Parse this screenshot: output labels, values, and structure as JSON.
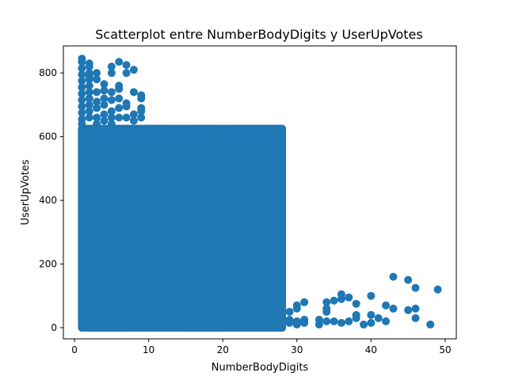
{
  "chart_data": {
    "type": "scatter",
    "title": "Scatterplot entre NumberBodyDigits y UserUpVotes",
    "xlabel": "NumberBodyDigits",
    "ylabel": "UserUpVotes",
    "xlim": [
      -1.5,
      51.5
    ],
    "ylim": [
      -35,
      885
    ],
    "x_ticks": [
      0,
      10,
      20,
      30,
      40,
      50
    ],
    "y_ticks": [
      0,
      200,
      400,
      600,
      800
    ],
    "grid": false,
    "legend": "none",
    "marker_color": "#1f77b4",
    "dense_region": {
      "x_range": [
        1,
        28
      ],
      "y_range": [
        0,
        625
      ]
    },
    "points": [
      [
        1,
        845
      ],
      [
        1,
        835
      ],
      [
        1,
        815
      ],
      [
        1,
        795
      ],
      [
        1,
        775
      ],
      [
        1,
        755
      ],
      [
        1,
        735
      ],
      [
        1,
        715
      ],
      [
        1,
        695
      ],
      [
        1,
        675
      ],
      [
        1,
        655
      ],
      [
        1,
        640
      ],
      [
        2,
        830
      ],
      [
        2,
        820
      ],
      [
        2,
        800
      ],
      [
        2,
        790
      ],
      [
        2,
        780
      ],
      [
        2,
        760
      ],
      [
        2,
        740
      ],
      [
        2,
        720
      ],
      [
        2,
        700
      ],
      [
        2,
        680
      ],
      [
        2,
        660
      ],
      [
        3,
        800
      ],
      [
        3,
        780
      ],
      [
        3,
        740
      ],
      [
        3,
        710
      ],
      [
        3,
        690
      ],
      [
        3,
        660
      ],
      [
        3,
        640
      ],
      [
        4,
        765
      ],
      [
        4,
        745
      ],
      [
        4,
        720
      ],
      [
        4,
        700
      ],
      [
        4,
        670
      ],
      [
        4,
        650
      ],
      [
        5,
        820
      ],
      [
        5,
        800
      ],
      [
        5,
        740
      ],
      [
        5,
        715
      ],
      [
        5,
        680
      ],
      [
        5,
        660
      ],
      [
        5,
        640
      ],
      [
        6,
        835
      ],
      [
        6,
        760
      ],
      [
        6,
        750
      ],
      [
        6,
        720
      ],
      [
        6,
        690
      ],
      [
        6,
        660
      ],
      [
        7,
        825
      ],
      [
        7,
        800
      ],
      [
        7,
        705
      ],
      [
        7,
        695
      ],
      [
        7,
        660
      ],
      [
        8,
        810
      ],
      [
        8,
        740
      ],
      [
        8,
        670
      ],
      [
        8,
        650
      ],
      [
        9,
        730
      ],
      [
        9,
        720
      ],
      [
        9,
        690
      ],
      [
        9,
        680
      ],
      [
        9,
        660
      ],
      [
        29,
        25
      ],
      [
        29,
        15
      ],
      [
        29,
        50
      ],
      [
        30,
        70
      ],
      [
        30,
        60
      ],
      [
        30,
        20
      ],
      [
        30,
        10
      ],
      [
        31,
        80
      ],
      [
        31,
        25
      ],
      [
        31,
        15
      ],
      [
        33,
        25
      ],
      [
        33,
        10
      ],
      [
        34,
        80
      ],
      [
        34,
        60
      ],
      [
        34,
        50
      ],
      [
        34,
        20
      ],
      [
        35,
        85
      ],
      [
        35,
        20
      ],
      [
        36,
        105
      ],
      [
        36,
        90
      ],
      [
        36,
        15
      ],
      [
        37,
        95
      ],
      [
        37,
        20
      ],
      [
        38,
        75
      ],
      [
        38,
        40
      ],
      [
        38,
        30
      ],
      [
        39,
        10
      ],
      [
        40,
        100
      ],
      [
        40,
        40
      ],
      [
        40,
        15
      ],
      [
        41,
        30
      ],
      [
        42,
        70
      ],
      [
        42,
        20
      ],
      [
        43,
        160
      ],
      [
        43,
        60
      ],
      [
        45,
        150
      ],
      [
        45,
        55
      ],
      [
        46,
        125
      ],
      [
        46,
        60
      ],
      [
        46,
        30
      ],
      [
        48,
        10
      ],
      [
        49,
        120
      ]
    ]
  }
}
